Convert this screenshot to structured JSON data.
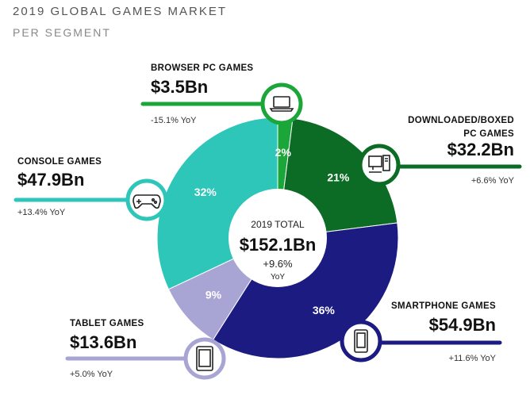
{
  "chart_data": {
    "type": "pie",
    "title": "2019 GLOBAL GAMES MARKET",
    "subtitle": "PER SEGMENT",
    "categories": [
      "BROWSER PC GAMES",
      "DOWNLOADED/BOXED PC GAMES",
      "SMARTPHONE GAMES",
      "TABLET GAMES",
      "CONSOLE GAMES"
    ],
    "values": [
      2,
      21,
      36,
      9,
      32
    ],
    "value_labels": [
      "2%",
      "21%",
      "36%",
      "9%",
      "32%"
    ],
    "colors": [
      "#1ba639",
      "#0c6b24",
      "#1b1b82",
      "#a8a5d4",
      "#2ec6b8"
    ],
    "amounts": [
      "$3.5Bn",
      "$32.2Bn",
      "$54.9Bn",
      "$13.6Bn",
      "$47.9Bn"
    ],
    "growth": [
      "-15.1% YoY",
      "+6.6% YoY",
      "+11.6% YoY",
      "+5.0% YoY",
      "+13.4% YoY"
    ],
    "center": {
      "label": "2019 TOTAL",
      "total": "$152.1Bn",
      "growth": "+9.6%",
      "growth_unit": "YoY"
    }
  }
}
